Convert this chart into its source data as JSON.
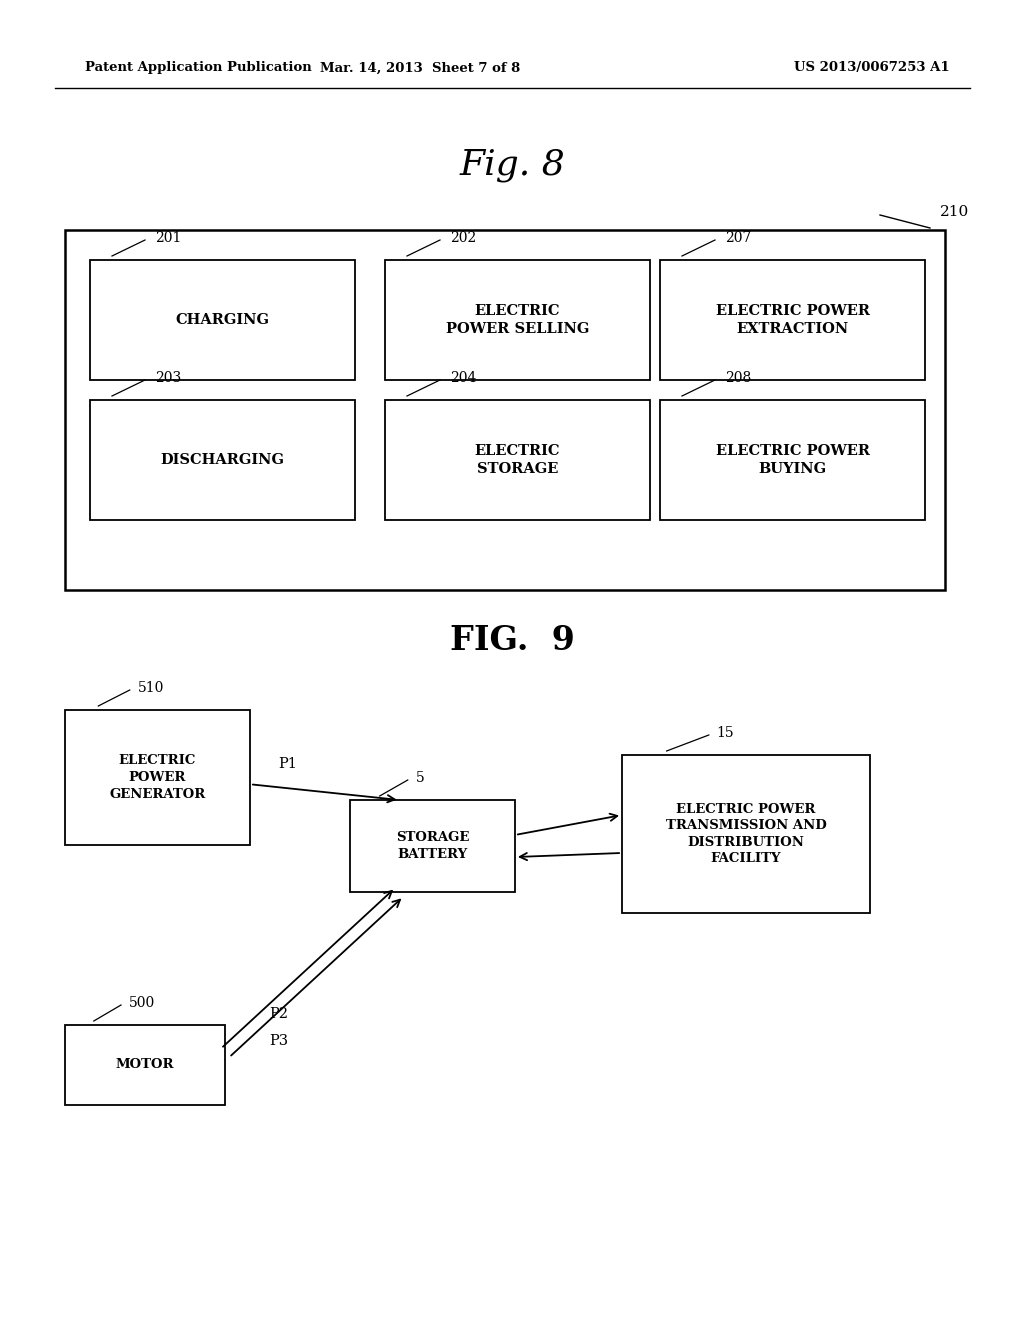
{
  "bg_color": "#ffffff",
  "header_left": "Patent Application Publication",
  "header_mid": "Mar. 14, 2013  Sheet 7 of 8",
  "header_right": "US 2013/0067253 A1",
  "fig8_title": "Fig. 8",
  "fig9_title": "FIG.  9",
  "outer_box_label": "210",
  "fig8_boxes": [
    {
      "label": "CHARGING",
      "ref": "201",
      "row": 0,
      "col": 0
    },
    {
      "label": "ELECTRIC\nPOWER SELLING",
      "ref": "202",
      "row": 0,
      "col": 1
    },
    {
      "label": "ELECTRIC POWER\nEXTRACTION",
      "ref": "207",
      "row": 0,
      "col": 2
    },
    {
      "label": "DISCHARGING",
      "ref": "203",
      "row": 1,
      "col": 0
    },
    {
      "label": "ELECTRIC\nSTORAGE",
      "ref": "204",
      "row": 1,
      "col": 1
    },
    {
      "label": "ELECTRIC POWER\nBUYING",
      "ref": "208",
      "row": 1,
      "col": 2
    }
  ],
  "node_labels": {
    "epg": "ELECTRIC\nPOWER\nGENERATOR",
    "battery": "STORAGE\nBATTERY",
    "motor": "MOTOR",
    "epf": "ELECTRIC POWER\nTRANSMISSION AND\nDISTRIBUTION\nFACILITY"
  },
  "node_refs": {
    "epg": "510",
    "battery": "5",
    "motor": "500",
    "epf": "15"
  }
}
